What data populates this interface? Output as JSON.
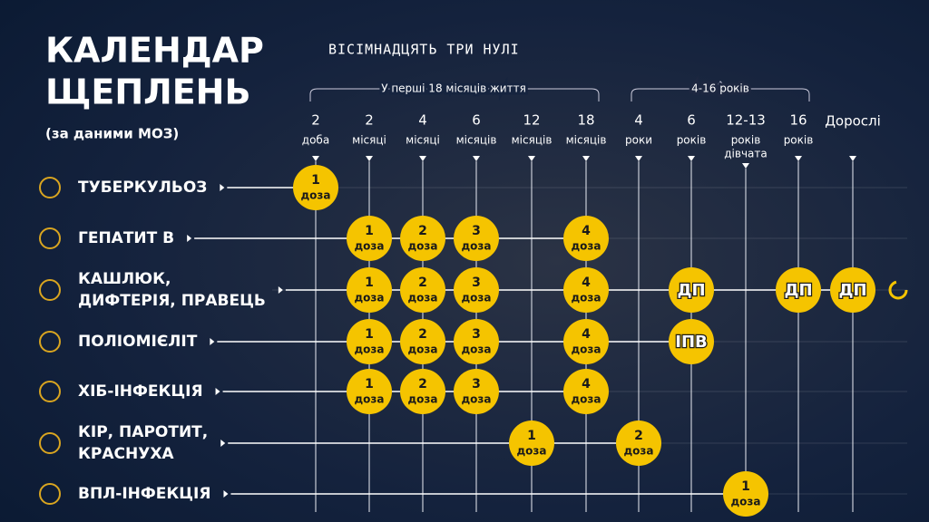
{
  "header": {
    "title": [
      "КАЛЕНДАР",
      "ЩЕПЛЕНЬ"
    ],
    "source": "(за даними МОЗ)",
    "brand": "ВІСІМНАДЦЯТЬ ТРИ НУЛІ"
  },
  "groups": [
    "У перші 18 місяців життя",
    "4-16 років"
  ],
  "columns": [
    [
      "2",
      "доба"
    ],
    [
      "2",
      "місяці"
    ],
    [
      "4",
      "місяці"
    ],
    [
      "6",
      "місяців"
    ],
    [
      "12",
      "місяців"
    ],
    [
      "18",
      "місяців"
    ],
    [
      "4",
      "роки"
    ],
    [
      "6",
      "років"
    ],
    [
      "12-13",
      "років",
      "дівчата"
    ],
    [
      "16",
      "років"
    ],
    [
      "Дорослі"
    ]
  ],
  "rows": [
    {
      "name": [
        "ТУБЕРКУЛЬОЗ"
      ],
      "cells": [
        [
          "1",
          "доза"
        ],
        null,
        null,
        null,
        null,
        null,
        null,
        null,
        null,
        null,
        null
      ]
    },
    {
      "name": [
        "ГЕПАТИТ В"
      ],
      "cells": [
        null,
        [
          "1",
          "доза"
        ],
        [
          "2",
          "доза"
        ],
        [
          "3",
          "доза"
        ],
        null,
        [
          "4",
          "доза"
        ],
        null,
        null,
        null,
        null,
        null
      ]
    },
    {
      "name": [
        "КАШЛЮК,",
        "ДИФТЕРІЯ, ПРАВЕЦЬ"
      ],
      "cells": [
        null,
        [
          "1",
          "доза"
        ],
        [
          "2",
          "доза"
        ],
        [
          "3",
          "доза"
        ],
        null,
        [
          "4",
          "доза"
        ],
        null,
        [
          "ДП"
        ],
        null,
        [
          "ДП"
        ],
        [
          "ДП"
        ]
      ]
    },
    {
      "name": [
        "ПОЛІОМІЄЛІТ"
      ],
      "cells": [
        null,
        [
          "1",
          "доза"
        ],
        [
          "2",
          "доза"
        ],
        [
          "3",
          "доза"
        ],
        null,
        [
          "4",
          "доза"
        ],
        null,
        [
          "ІПВ"
        ],
        null,
        null,
        null
      ]
    },
    {
      "name": [
        "ХІБ-ІНФЕКЦІЯ"
      ],
      "cells": [
        null,
        [
          "1",
          "доза"
        ],
        [
          "2",
          "доза"
        ],
        [
          "3",
          "доза"
        ],
        null,
        [
          "4",
          "доза"
        ],
        null,
        null,
        null,
        null,
        null
      ]
    },
    {
      "name": [
        "КІР, ПАРОТИТ,",
        "КРАСНУХА"
      ],
      "cells": [
        null,
        null,
        null,
        null,
        [
          "1",
          "доза"
        ],
        null,
        [
          "2",
          "доза"
        ],
        null,
        null,
        null,
        null
      ]
    },
    {
      "name": [
        "ВПЛ-ІНФЕКЦІЯ"
      ],
      "cells": [
        null,
        null,
        null,
        null,
        null,
        null,
        null,
        null,
        [
          "1",
          "доза"
        ],
        null,
        null
      ]
    }
  ]
}
